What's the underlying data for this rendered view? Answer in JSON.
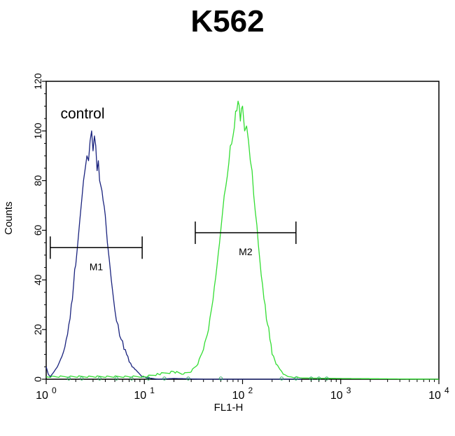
{
  "chart_data": {
    "type": "area",
    "title": "K562",
    "xlabel": "FL1-H",
    "ylabel": "Counts",
    "x_scale": "log",
    "xlim": [
      1,
      10000
    ],
    "ylim": [
      0,
      120
    ],
    "x_ticks": [
      {
        "value": 1,
        "base": "10",
        "exp": "0"
      },
      {
        "value": 10,
        "base": "10",
        "exp": "1"
      },
      {
        "value": 100,
        "base": "10",
        "exp": "2"
      },
      {
        "value": 1000,
        "base": "10",
        "exp": "3"
      },
      {
        "value": 10000,
        "base": "10",
        "exp": "4"
      }
    ],
    "y_ticks": [
      0,
      20,
      40,
      60,
      80,
      100,
      120
    ],
    "grid": false,
    "annotations": [
      {
        "text": "control",
        "x": 1.4,
        "y": 105
      }
    ],
    "markers": [
      {
        "label": "M1",
        "x_start": 1.1,
        "x_end": 9.5,
        "y": 53
      },
      {
        "label": "M2",
        "x_start": 33,
        "x_end": 350,
        "y": 59
      }
    ],
    "series": [
      {
        "color": "#1a237e",
        "x": [
          1.0,
          1.05,
          1.1,
          1.2,
          1.3,
          1.4,
          1.5,
          1.6,
          1.7,
          1.8,
          1.9,
          2.0,
          2.1,
          2.2,
          2.3,
          2.4,
          2.5,
          2.6,
          2.7,
          2.8,
          2.9,
          3.0,
          3.1,
          3.2,
          3.3,
          3.4,
          3.5,
          3.6,
          3.8,
          4.0,
          4.2,
          4.4,
          4.6,
          4.8,
          5.0,
          5.4,
          5.8,
          6.2,
          6.6,
          7.0,
          7.5,
          8.0,
          8.5,
          9.0,
          9.5,
          10.0,
          11,
          12,
          14,
          20,
          40,
          100,
          400
        ],
        "values": [
          5,
          2,
          1,
          3,
          5,
          8,
          11,
          16,
          22,
          30,
          38,
          46,
          55,
          64,
          72,
          80,
          85,
          90,
          88,
          96,
          100,
          92,
          98,
          94,
          84,
          88,
          80,
          78,
          72,
          66,
          55,
          48,
          40,
          34,
          28,
          22,
          16,
          12,
          10,
          7,
          5,
          4,
          3,
          2,
          1,
          1,
          0.5,
          0.3,
          0,
          0.3,
          0,
          0,
          0
        ]
      },
      {
        "color": "#33dd33",
        "x": [
          1.0,
          3,
          10,
          14,
          20,
          25,
          30,
          35,
          40,
          45,
          50,
          55,
          60,
          65,
          70,
          75,
          80,
          85,
          90,
          95,
          100,
          105,
          110,
          115,
          120,
          125,
          130,
          140,
          150,
          160,
          170,
          180,
          190,
          200,
          220,
          240,
          260,
          300,
          400,
          1000,
          10000
        ],
        "values": [
          1,
          1,
          1,
          2,
          3,
          2,
          3,
          6,
          12,
          20,
          32,
          46,
          60,
          74,
          82,
          94,
          98,
          108,
          112,
          104,
          110,
          100,
          102,
          96,
          88,
          84,
          74,
          62,
          48,
          38,
          30,
          22,
          16,
          10,
          6,
          4,
          2,
          1,
          0.5,
          0.3,
          0
        ]
      }
    ]
  }
}
